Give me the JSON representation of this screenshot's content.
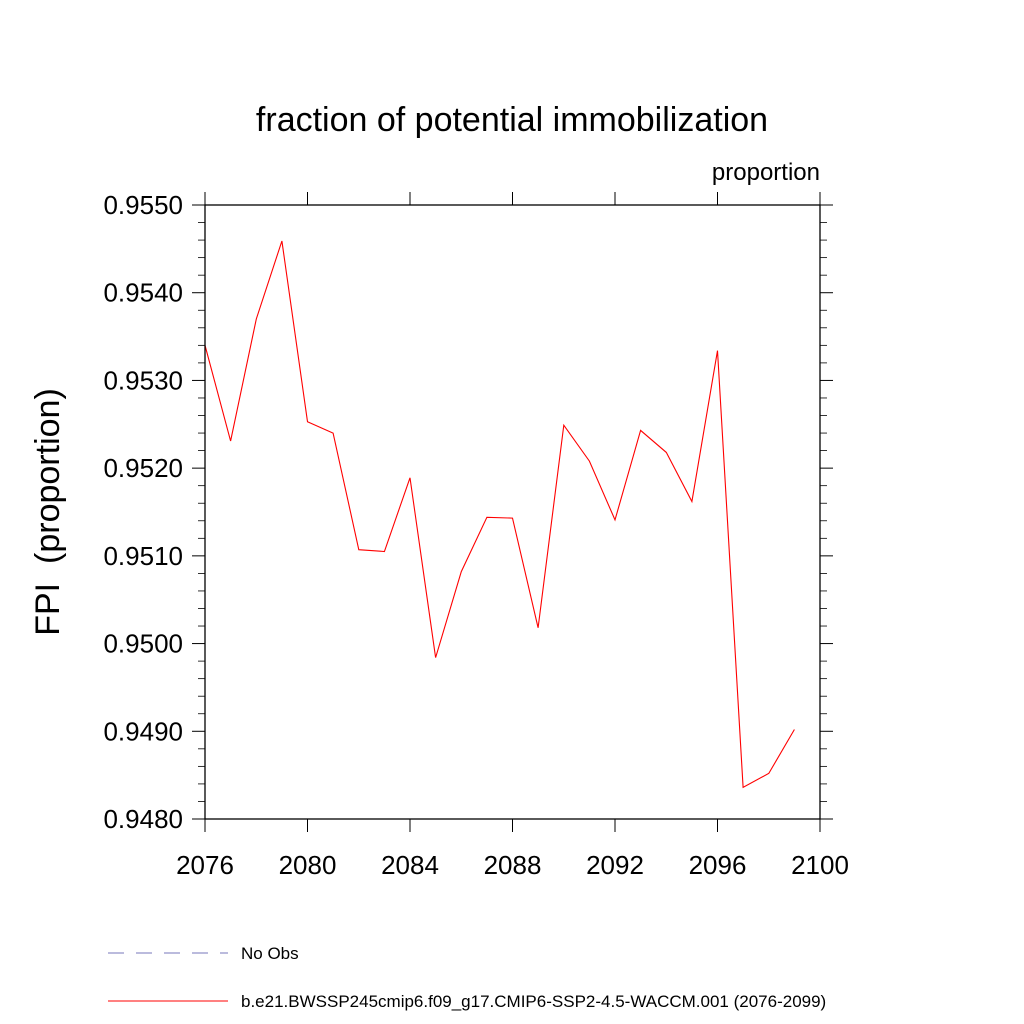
{
  "chart_data": {
    "type": "line",
    "title": "fraction of potential immobilization",
    "units_label": "proportion",
    "ylabel": "FPI  (proportion)",
    "xlabel": "",
    "xlim": [
      2076,
      2100
    ],
    "ylim": [
      0.948,
      0.955
    ],
    "x_ticks": [
      2076,
      2080,
      2084,
      2088,
      2092,
      2096,
      2100
    ],
    "x_tick_labels": [
      "2076",
      "2080",
      "2084",
      "2088",
      "2092",
      "2096",
      "2100"
    ],
    "y_ticks": [
      0.948,
      0.949,
      0.95,
      0.951,
      0.952,
      0.953,
      0.954,
      0.955
    ],
    "y_tick_labels": [
      "0.9480",
      "0.9490",
      "0.9500",
      "0.9510",
      "0.9520",
      "0.9530",
      "0.9540",
      "0.9550"
    ],
    "x": [
      2076,
      2077,
      2078,
      2079,
      2080,
      2081,
      2082,
      2083,
      2084,
      2085,
      2086,
      2087,
      2088,
      2089,
      2090,
      2091,
      2092,
      2093,
      2094,
      2095,
      2096,
      2097,
      2098,
      2099
    ],
    "series": [
      {
        "name": "b.e21.BWSSP245cmip6.f09_g17.CMIP6-SSP2-4.5-WACCM.001 (2076-2099)",
        "color": "#ff0000",
        "values": [
          0.9534,
          0.95231,
          0.9537,
          0.95459,
          0.95253,
          0.9524,
          0.95107,
          0.95105,
          0.95189,
          0.94984,
          0.95082,
          0.95144,
          0.95143,
          0.95018,
          0.95249,
          0.95208,
          0.95141,
          0.95243,
          0.95218,
          0.95162,
          0.95334,
          0.94836,
          0.94852,
          0.94902
        ]
      }
    ],
    "legend": {
      "placement": "bottom",
      "entries": [
        {
          "label": "No Obs",
          "color": "#7777bb",
          "style": "dashed"
        },
        {
          "label": "b.e21.BWSSP245cmip6.f09_g17.CMIP6-SSP2-4.5-WACCM.001 (2076-2099)",
          "color": "#ff0000",
          "style": "solid"
        }
      ]
    }
  }
}
